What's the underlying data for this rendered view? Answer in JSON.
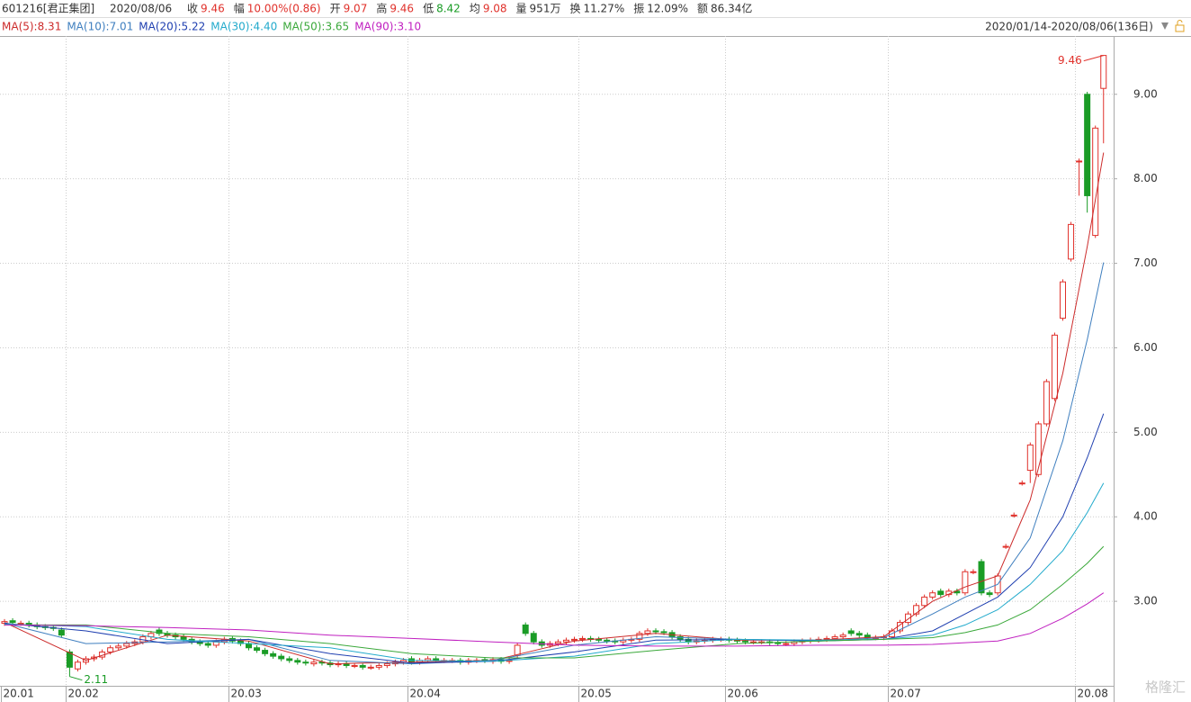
{
  "header": {
    "code": "601216[君正集团]",
    "date": "2020/08/06",
    "items": [
      {
        "label": "收",
        "value": "9.46",
        "color": "#e0312b"
      },
      {
        "label": "幅",
        "value": "10.00%(0.86)",
        "color": "#e0312b"
      },
      {
        "label": "开",
        "value": "9.07",
        "color": "#e0312b"
      },
      {
        "label": "高",
        "value": "9.46",
        "color": "#e0312b"
      },
      {
        "label": "低",
        "value": "8.42",
        "color": "#1a9c26"
      },
      {
        "label": "均",
        "value": "9.08",
        "color": "#e0312b"
      },
      {
        "label": "量",
        "value": "951万",
        "color": "#333333"
      },
      {
        "label": "换",
        "value": "11.27%",
        "color": "#333333"
      },
      {
        "label": "振",
        "value": "12.09%",
        "color": "#333333"
      },
      {
        "label": "额",
        "value": "86.34亿",
        "color": "#333333"
      }
    ],
    "range": "2020/01/14-2020/08/06(136日)"
  },
  "watermark": "格隆汇",
  "chart_data": {
    "type": "candlestick",
    "categories": [
      "20.01",
      null,
      null,
      null,
      null,
      null,
      null,
      null,
      "20.02",
      null,
      null,
      null,
      null,
      null,
      null,
      null,
      null,
      null,
      null,
      null,
      null,
      null,
      null,
      null,
      null,
      null,
      null,
      null,
      "20.03",
      null,
      null,
      null,
      null,
      null,
      null,
      null,
      null,
      null,
      null,
      null,
      null,
      null,
      null,
      null,
      null,
      null,
      null,
      null,
      null,
      null,
      "20.04",
      null,
      null,
      null,
      null,
      null,
      null,
      null,
      null,
      null,
      null,
      null,
      null,
      null,
      null,
      null,
      null,
      null,
      null,
      null,
      null,
      "20.05",
      null,
      null,
      null,
      null,
      null,
      null,
      null,
      null,
      null,
      null,
      null,
      null,
      null,
      null,
      null,
      null,
      null,
      "20.06",
      null,
      null,
      null,
      null,
      null,
      null,
      null,
      null,
      null,
      null,
      null,
      null,
      null,
      null,
      null,
      null,
      null,
      null,
      null,
      "20.07",
      null,
      null,
      null,
      null,
      null,
      null,
      null,
      null,
      null,
      null,
      null,
      null,
      null,
      null,
      null,
      null,
      null,
      null,
      null,
      null,
      null,
      null,
      "20.08",
      null,
      null,
      null
    ],
    "open": [
      2.74,
      2.77,
      2.74,
      2.74,
      2.72,
      2.7,
      2.69,
      2.66,
      2.4,
      2.2,
      2.28,
      2.32,
      2.34,
      2.4,
      2.45,
      2.47,
      2.5,
      2.52,
      2.58,
      2.66,
      2.62,
      2.6,
      2.58,
      2.55,
      2.52,
      2.5,
      2.48,
      2.52,
      2.56,
      2.53,
      2.5,
      2.45,
      2.42,
      2.38,
      2.35,
      2.32,
      2.3,
      2.28,
      2.26,
      2.28,
      2.27,
      2.25,
      2.26,
      2.24,
      2.24,
      2.22,
      2.22,
      2.24,
      2.26,
      2.28,
      2.32,
      2.28,
      2.3,
      2.32,
      2.3,
      2.3,
      2.3,
      2.28,
      2.3,
      2.31,
      2.29,
      2.31,
      2.29,
      2.36,
      2.72,
      2.62,
      2.52,
      2.48,
      2.5,
      2.52,
      2.54,
      2.55,
      2.56,
      2.55,
      2.54,
      2.53,
      2.52,
      2.54,
      2.55,
      2.62,
      2.65,
      2.64,
      2.63,
      2.58,
      2.55,
      2.52,
      2.53,
      2.54,
      2.55,
      2.55,
      2.54,
      2.53,
      2.52,
      2.52,
      2.52,
      2.51,
      2.5,
      2.5,
      2.52,
      2.53,
      2.54,
      2.55,
      2.56,
      2.58,
      2.65,
      2.62,
      2.6,
      2.57,
      2.57,
      2.58,
      2.65,
      2.75,
      2.85,
      2.95,
      3.05,
      3.12,
      3.08,
      3.12,
      3.1,
      3.35,
      3.47,
      3.1,
      3.1,
      3.65,
      4.02,
      4.4,
      4.55,
      4.5,
      5.1,
      5.4,
      6.35,
      7.05,
      8.21,
      9.0,
      7.33,
      9.07
    ],
    "high": [
      2.79,
      2.8,
      2.77,
      2.77,
      2.75,
      2.73,
      2.72,
      2.69,
      2.43,
      2.31,
      2.35,
      2.37,
      2.43,
      2.48,
      2.5,
      2.53,
      2.55,
      2.61,
      2.65,
      2.69,
      2.65,
      2.63,
      2.61,
      2.58,
      2.55,
      2.53,
      2.55,
      2.58,
      2.59,
      2.56,
      2.53,
      2.48,
      2.45,
      2.41,
      2.38,
      2.35,
      2.33,
      2.31,
      2.31,
      2.31,
      2.3,
      2.29,
      2.29,
      2.27,
      2.27,
      2.25,
      2.27,
      2.29,
      2.31,
      2.33,
      2.35,
      2.33,
      2.35,
      2.35,
      2.33,
      2.33,
      2.33,
      2.33,
      2.33,
      2.34,
      2.34,
      2.34,
      2.33,
      2.51,
      2.75,
      2.65,
      2.55,
      2.53,
      2.55,
      2.57,
      2.58,
      2.59,
      2.59,
      2.58,
      2.57,
      2.56,
      2.57,
      2.58,
      2.65,
      2.68,
      2.68,
      2.67,
      2.66,
      2.61,
      2.58,
      2.56,
      2.57,
      2.58,
      2.58,
      2.58,
      2.57,
      2.56,
      2.55,
      2.55,
      2.55,
      2.54,
      2.53,
      2.55,
      2.56,
      2.57,
      2.58,
      2.59,
      2.61,
      2.63,
      2.68,
      2.65,
      2.63,
      2.6,
      2.61,
      2.68,
      2.78,
      2.88,
      2.98,
      3.08,
      3.13,
      3.15,
      3.15,
      3.15,
      3.38,
      3.38,
      3.5,
      3.13,
      3.33,
      3.68,
      4.05,
      4.43,
      4.88,
      5.13,
      5.63,
      6.18,
      6.81,
      7.49,
      8.24,
      9.03,
      8.63,
      9.46
    ],
    "low": [
      2.71,
      2.72,
      2.71,
      2.69,
      2.67,
      2.66,
      2.65,
      2.57,
      2.11,
      2.17,
      2.25,
      2.29,
      2.31,
      2.37,
      2.42,
      2.44,
      2.47,
      2.49,
      2.55,
      2.59,
      2.57,
      2.55,
      2.52,
      2.49,
      2.47,
      2.45,
      2.45,
      2.49,
      2.5,
      2.47,
      2.42,
      2.39,
      2.35,
      2.32,
      2.29,
      2.27,
      2.25,
      2.24,
      2.23,
      2.24,
      2.22,
      2.22,
      2.21,
      2.21,
      2.19,
      2.19,
      2.19,
      2.21,
      2.23,
      2.25,
      2.25,
      2.25,
      2.27,
      2.27,
      2.27,
      2.27,
      2.25,
      2.25,
      2.27,
      2.27,
      2.26,
      2.26,
      2.26,
      2.33,
      2.59,
      2.49,
      2.45,
      2.45,
      2.47,
      2.49,
      2.51,
      2.52,
      2.52,
      2.51,
      2.5,
      2.49,
      2.49,
      2.51,
      2.52,
      2.59,
      2.61,
      2.6,
      2.55,
      2.52,
      2.49,
      2.49,
      2.5,
      2.51,
      2.52,
      2.51,
      2.5,
      2.49,
      2.49,
      2.49,
      2.48,
      2.47,
      2.47,
      2.47,
      2.49,
      2.5,
      2.51,
      2.52,
      2.53,
      2.55,
      2.59,
      2.57,
      2.54,
      2.54,
      2.54,
      2.55,
      2.62,
      2.72,
      2.82,
      2.92,
      3.02,
      3.05,
      3.05,
      3.07,
      3.07,
      3.32,
      3.07,
      3.05,
      3.07,
      3.62,
      3.99,
      4.37,
      4.4,
      4.47,
      5.07,
      5.37,
      6.32,
      7.02,
      7.8,
      7.6,
      7.3,
      8.42
    ],
    "close": [
      2.76,
      2.75,
      2.74,
      2.72,
      2.7,
      2.69,
      2.68,
      2.6,
      2.22,
      2.28,
      2.32,
      2.34,
      2.4,
      2.45,
      2.47,
      2.5,
      2.52,
      2.58,
      2.62,
      2.62,
      2.6,
      2.58,
      2.55,
      2.52,
      2.5,
      2.48,
      2.52,
      2.55,
      2.53,
      2.5,
      2.45,
      2.42,
      2.38,
      2.35,
      2.32,
      2.3,
      2.28,
      2.27,
      2.28,
      2.27,
      2.25,
      2.26,
      2.24,
      2.24,
      2.22,
      2.22,
      2.24,
      2.26,
      2.28,
      2.3,
      2.28,
      2.3,
      2.32,
      2.3,
      2.3,
      2.3,
      2.28,
      2.3,
      2.3,
      2.3,
      2.31,
      2.29,
      2.3,
      2.48,
      2.62,
      2.52,
      2.48,
      2.5,
      2.52,
      2.54,
      2.55,
      2.56,
      2.55,
      2.54,
      2.53,
      2.52,
      2.54,
      2.55,
      2.62,
      2.65,
      2.64,
      2.63,
      2.58,
      2.55,
      2.52,
      2.53,
      2.54,
      2.55,
      2.55,
      2.54,
      2.53,
      2.52,
      2.52,
      2.52,
      2.51,
      2.5,
      2.5,
      2.52,
      2.53,
      2.54,
      2.55,
      2.56,
      2.58,
      2.6,
      2.62,
      2.6,
      2.57,
      2.57,
      2.58,
      2.65,
      2.75,
      2.85,
      2.95,
      3.05,
      3.1,
      3.08,
      3.12,
      3.1,
      3.35,
      3.35,
      3.1,
      3.08,
      3.3,
      3.65,
      4.02,
      4.4,
      4.85,
      5.1,
      5.6,
      6.15,
      6.78,
      7.46,
      8.21,
      7.8,
      8.6,
      9.46
    ],
    "up_color": "#e0312b",
    "down_color": "#1a9c26",
    "series": [
      {
        "name": "MA(5):8.31",
        "color": "#cc2a2a",
        "x": [
          0,
          10,
          20,
          30,
          40,
          50,
          60,
          70,
          80,
          90,
          100,
          108,
          114,
          118,
          122,
          126,
          130,
          133,
          135
        ],
        "values": [
          2.75,
          2.3,
          2.6,
          2.53,
          2.26,
          2.28,
          2.3,
          2.53,
          2.62,
          2.54,
          2.54,
          2.58,
          3.0,
          3.17,
          3.3,
          4.2,
          5.7,
          7.2,
          8.31
        ]
      },
      {
        "name": "MA(10):7.01",
        "color": "#3f7fbf",
        "x": [
          0,
          10,
          20,
          30,
          40,
          50,
          60,
          70,
          80,
          90,
          100,
          108,
          114,
          118,
          122,
          126,
          130,
          133,
          135
        ],
        "values": [
          2.74,
          2.5,
          2.52,
          2.55,
          2.3,
          2.26,
          2.3,
          2.48,
          2.58,
          2.55,
          2.53,
          2.57,
          2.85,
          3.05,
          3.2,
          3.75,
          4.9,
          6.1,
          7.01
        ]
      },
      {
        "name": "MA(20):5.22",
        "color": "#1f3fb0",
        "x": [
          0,
          10,
          20,
          30,
          40,
          50,
          60,
          70,
          80,
          90,
          100,
          108,
          114,
          118,
          122,
          126,
          130,
          133,
          135
        ],
        "values": [
          2.74,
          2.65,
          2.5,
          2.55,
          2.38,
          2.27,
          2.29,
          2.4,
          2.54,
          2.55,
          2.53,
          2.55,
          2.65,
          2.85,
          3.05,
          3.4,
          4.0,
          4.7,
          5.22
        ]
      },
      {
        "name": "MA(30):4.40",
        "color": "#22aacc",
        "x": [
          0,
          10,
          20,
          30,
          40,
          50,
          60,
          70,
          80,
          90,
          100,
          108,
          114,
          118,
          122,
          126,
          130,
          133,
          135
        ],
        "values": [
          2.73,
          2.7,
          2.55,
          2.5,
          2.45,
          2.3,
          2.29,
          2.35,
          2.5,
          2.55,
          2.54,
          2.55,
          2.6,
          2.72,
          2.9,
          3.2,
          3.6,
          4.05,
          4.4
        ]
      },
      {
        "name": "MA(50):3.65",
        "color": "#3aa83a",
        "x": [
          0,
          10,
          20,
          30,
          40,
          50,
          60,
          70,
          80,
          90,
          100,
          108,
          114,
          118,
          122,
          126,
          130,
          133,
          135
        ],
        "values": [
          2.72,
          2.72,
          2.62,
          2.58,
          2.5,
          2.38,
          2.33,
          2.33,
          2.42,
          2.5,
          2.53,
          2.55,
          2.57,
          2.63,
          2.72,
          2.9,
          3.2,
          3.45,
          3.65
        ]
      },
      {
        "name": "MA(90):3.10",
        "color": "#c020c0",
        "x": [
          0,
          10,
          20,
          30,
          40,
          50,
          60,
          70,
          80,
          90,
          100,
          108,
          114,
          118,
          122,
          126,
          130,
          133,
          135
        ],
        "values": [
          2.72,
          2.71,
          2.69,
          2.66,
          2.6,
          2.56,
          2.52,
          2.48,
          2.47,
          2.47,
          2.48,
          2.48,
          2.49,
          2.51,
          2.53,
          2.62,
          2.8,
          2.97,
          3.1
        ]
      }
    ],
    "annotations": [
      {
        "text": "9.46"
      },
      {
        "text": "2.11"
      }
    ],
    "ylim": [
      2.0,
      9.69
    ],
    "yticks": [
      {
        "value": 3,
        "label": "3.00"
      },
      {
        "value": 4,
        "label": "4.00"
      },
      {
        "value": 5,
        "label": "5.00"
      },
      {
        "value": 6,
        "label": "6.00"
      },
      {
        "value": 7,
        "label": "7.00"
      },
      {
        "value": 8,
        "label": "8.00"
      },
      {
        "value": 9,
        "label": "9.00"
      }
    ],
    "grid": true
  }
}
